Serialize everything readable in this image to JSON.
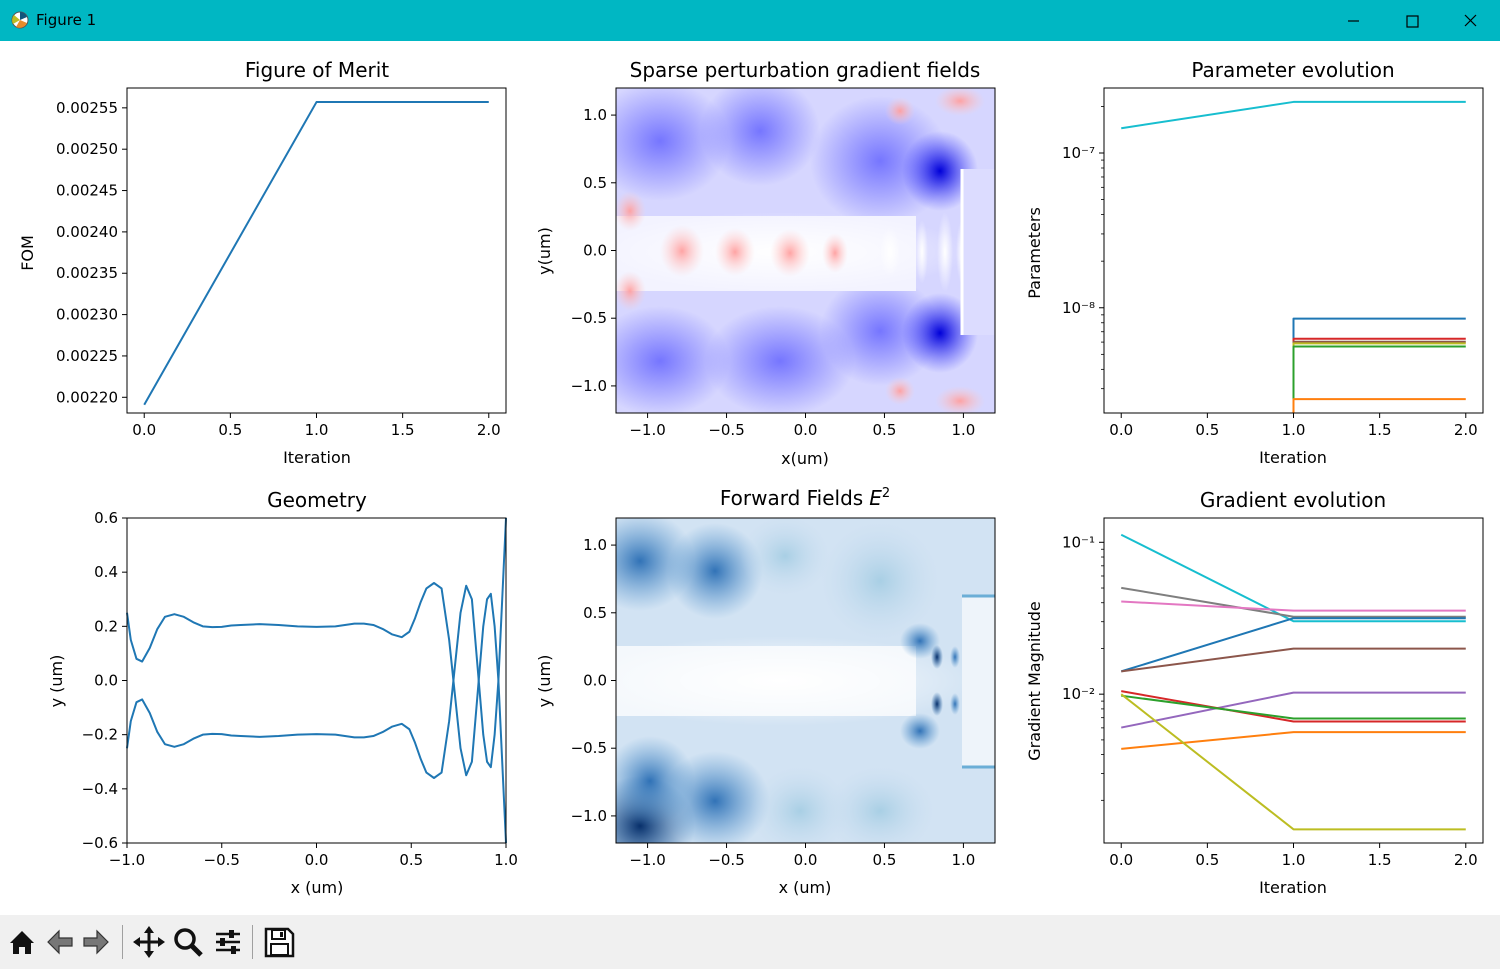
{
  "window": {
    "title": "Figure 1",
    "accent": "#00b7c3"
  },
  "toolbar": {
    "buttons": [
      "home-icon",
      "back-icon",
      "forward-icon",
      "pan-icon",
      "zoom-icon",
      "subplots-icon",
      "save-icon"
    ]
  },
  "colors": [
    "#1f77b4",
    "#ff7f0e",
    "#2ca02c",
    "#d62728",
    "#9467bd",
    "#8c564b",
    "#e377c2",
    "#7f7f7f",
    "#bcbd22",
    "#17becf"
  ],
  "chart_data": [
    {
      "type": "line",
      "title": "Figure of Merit",
      "xlabel": "Iteration",
      "ylabel": "FOM",
      "xlim": [
        -0.1,
        2.1
      ],
      "ylim": [
        0.002181,
        0.002574
      ],
      "xticks": [
        0.0,
        0.5,
        1.0,
        1.5,
        2.0
      ],
      "xtick_labels": [
        "0.0",
        "0.5",
        "1.0",
        "1.5",
        "2.0"
      ],
      "yticks": [
        0.0022,
        0.00225,
        0.0023,
        0.00235,
        0.0024,
        0.00245,
        0.0025,
        0.00255
      ],
      "ytick_labels": [
        "0.00220",
        "0.00225",
        "0.00230",
        "0.00235",
        "0.00240",
        "0.00245",
        "0.00250",
        "0.00255"
      ],
      "series": [
        {
          "x": [
            0,
            1,
            2
          ],
          "y": [
            0.002191,
            0.002557,
            0.002557
          ],
          "color": "#1f77b4"
        }
      ]
    },
    {
      "type": "heatmap",
      "title": "Sparse perturbation gradient fields",
      "xlabel": "x(um)",
      "ylabel": "y(um)",
      "colormap": "bwr",
      "xlim": [
        -1.2,
        1.2
      ],
      "ylim": [
        -1.2,
        1.2
      ],
      "xticks": [
        -1.0,
        -0.5,
        0.0,
        0.5,
        1.0
      ],
      "xtick_labels": [
        "−1.0",
        "−0.5",
        "0.0",
        "0.5",
        "1.0"
      ],
      "yticks": [
        -1.0,
        -0.5,
        0.0,
        0.5,
        1.0
      ],
      "ytick_labels": [
        "−1.0",
        "−0.5",
        "0.0",
        "0.5",
        "1.0"
      ]
    },
    {
      "type": "line",
      "title": "Parameter evolution",
      "xlabel": "Iteration",
      "ylabel": "Parameters",
      "yscale": "log",
      "xlim": [
        -0.1,
        2.1
      ],
      "ylim_log10": [
        -8.68,
        -6.58
      ],
      "xticks": [
        0.0,
        0.5,
        1.0,
        1.5,
        2.0
      ],
      "xtick_labels": [
        "0.0",
        "0.5",
        "1.0",
        "1.5",
        "2.0"
      ],
      "yticks_log10": [
        -8,
        -7
      ],
      "ytick_labels": [
        "10⁻⁸",
        "10⁻⁷"
      ],
      "series": [
        {
          "x": [
            0,
            1,
            2
          ],
          "log10_y": [
            -6.84,
            -6.67,
            -6.67
          ],
          "color": "#17becf"
        },
        {
          "x": [
            1,
            1,
            2
          ],
          "log10_y": [
            -8.68,
            -8.07,
            -8.07
          ],
          "color": "#1f77b4"
        },
        {
          "x": [
            1,
            1,
            2
          ],
          "log10_y": [
            -8.68,
            -8.2,
            -8.2
          ],
          "color": "#d62728"
        },
        {
          "x": [
            1,
            1,
            2
          ],
          "log10_y": [
            -8.68,
            -8.22,
            -8.22
          ],
          "color": "#8c564b"
        },
        {
          "x": [
            1,
            1,
            2
          ],
          "log10_y": [
            -8.68,
            -8.23,
            -8.23
          ],
          "color": "#bcbd22"
        },
        {
          "x": [
            1,
            1,
            2
          ],
          "log10_y": [
            -8.68,
            -8.25,
            -8.25
          ],
          "color": "#2ca02c"
        },
        {
          "x": [
            1,
            1,
            2
          ],
          "log10_y": [
            -8.68,
            -8.59,
            -8.59
          ],
          "color": "#ff7f0e"
        }
      ]
    },
    {
      "type": "line",
      "title": "Geometry",
      "xlabel": "x (um)",
      "ylabel": "y (um)",
      "xlim": [
        -1.0,
        1.0
      ],
      "ylim": [
        -0.6,
        0.6
      ],
      "xticks": [
        -1.0,
        -0.5,
        0.0,
        0.5,
        1.0
      ],
      "xtick_labels": [
        "−1.0",
        "−0.5",
        "0.0",
        "0.5",
        "1.0"
      ],
      "yticks": [
        -0.6,
        -0.4,
        -0.2,
        0.0,
        0.2,
        0.4,
        0.6
      ],
      "ytick_labels": [
        "−0.6",
        "−0.4",
        "−0.2",
        "0.0",
        "0.2",
        "0.4",
        "0.6"
      ],
      "series": [
        {
          "color": "#1f77b4",
          "x": [
            -1.0,
            -0.98,
            -0.95,
            -0.92,
            -0.88,
            -0.84,
            -0.8,
            -0.75,
            -0.7,
            -0.65,
            -0.6,
            -0.55,
            -0.5,
            -0.45,
            -0.4,
            -0.3,
            -0.2,
            -0.1,
            0.0,
            0.1,
            0.2,
            0.25,
            0.3,
            0.35,
            0.4,
            0.45,
            0.49,
            0.52,
            0.55,
            0.58,
            0.62,
            0.66,
            0.7,
            0.73,
            0.76,
            0.79,
            0.82,
            0.85,
            0.88,
            0.9,
            0.92,
            0.94,
            0.96,
            0.98,
            1.0
          ],
          "y": [
            0.25,
            0.15,
            0.08,
            0.07,
            0.12,
            0.19,
            0.235,
            0.245,
            0.235,
            0.215,
            0.2,
            0.197,
            0.198,
            0.203,
            0.205,
            0.208,
            0.205,
            0.2,
            0.198,
            0.2,
            0.21,
            0.21,
            0.205,
            0.19,
            0.17,
            0.16,
            0.18,
            0.23,
            0.29,
            0.34,
            0.36,
            0.34,
            0.15,
            -0.05,
            -0.25,
            -0.35,
            -0.3,
            -0.05,
            0.2,
            0.3,
            0.32,
            0.2,
            0.0,
            -0.3,
            -0.6
          ]
        },
        {
          "color": "#1f77b4",
          "x": [
            -1.0,
            -0.98,
            -0.95,
            -0.92,
            -0.88,
            -0.84,
            -0.8,
            -0.75,
            -0.7,
            -0.65,
            -0.6,
            -0.55,
            -0.5,
            -0.45,
            -0.4,
            -0.3,
            -0.2,
            -0.1,
            0.0,
            0.1,
            0.2,
            0.25,
            0.3,
            0.35,
            0.4,
            0.45,
            0.49,
            0.52,
            0.55,
            0.58,
            0.62,
            0.66,
            0.7,
            0.73,
            0.76,
            0.79,
            0.82,
            0.85,
            0.88,
            0.9,
            0.92,
            0.94,
            0.96,
            0.98,
            1.0
          ],
          "y": [
            -0.25,
            -0.15,
            -0.08,
            -0.07,
            -0.12,
            -0.19,
            -0.235,
            -0.245,
            -0.235,
            -0.215,
            -0.2,
            -0.197,
            -0.198,
            -0.203,
            -0.205,
            -0.208,
            -0.205,
            -0.2,
            -0.198,
            -0.2,
            -0.21,
            -0.21,
            -0.205,
            -0.19,
            -0.17,
            -0.16,
            -0.18,
            -0.23,
            -0.29,
            -0.34,
            -0.36,
            -0.34,
            -0.15,
            0.05,
            0.25,
            0.35,
            0.3,
            0.05,
            -0.2,
            -0.3,
            -0.32,
            -0.2,
            0.0,
            0.3,
            0.6
          ]
        }
      ]
    },
    {
      "type": "heatmap",
      "title": "Forward Fields",
      "title_math": "E",
      "title_sup": "2",
      "xlabel": "x (um)",
      "ylabel": "y (um)",
      "colormap": "Blues",
      "xlim": [
        -1.2,
        1.2
      ],
      "ylim": [
        -1.2,
        1.2
      ],
      "xticks": [
        -1.0,
        -0.5,
        0.0,
        0.5,
        1.0
      ],
      "xtick_labels": [
        "−1.0",
        "−0.5",
        "0.0",
        "0.5",
        "1.0"
      ],
      "yticks": [
        -1.0,
        -0.5,
        0.0,
        0.5,
        1.0
      ],
      "ytick_labels": [
        "−1.0",
        "−0.5",
        "0.0",
        "0.5",
        "1.0"
      ]
    },
    {
      "type": "line",
      "title": "Gradient evolution",
      "xlabel": "Iteration",
      "ylabel": "Gradient Magnitude",
      "yscale": "log",
      "xlim": [
        -0.1,
        2.1
      ],
      "ylim_log10": [
        -2.98,
        -0.84
      ],
      "xticks": [
        0.0,
        0.5,
        1.0,
        1.5,
        2.0
      ],
      "xtick_labels": [
        "0.0",
        "0.5",
        "1.0",
        "1.5",
        "2.0"
      ],
      "yticks_log10": [
        -2,
        -1
      ],
      "ytick_labels": [
        "10⁻²",
        "10⁻¹"
      ],
      "series": [
        {
          "x": [
            0,
            1,
            2
          ],
          "log10_y": [
            -0.95,
            -1.52,
            -1.52
          ],
          "color": "#17becf"
        },
        {
          "x": [
            0,
            1,
            2
          ],
          "log10_y": [
            -1.3,
            -1.49,
            -1.49
          ],
          "color": "#7f7f7f"
        },
        {
          "x": [
            0,
            1,
            2
          ],
          "log10_y": [
            -1.39,
            -1.45,
            -1.45
          ],
          "color": "#e377c2"
        },
        {
          "x": [
            0,
            1,
            2
          ],
          "log10_y": [
            -1.85,
            -1.5,
            -1.5
          ],
          "color": "#1f77b4"
        },
        {
          "x": [
            0,
            1,
            2
          ],
          "log10_y": [
            -1.85,
            -1.7,
            -1.7
          ],
          "color": "#8c564b"
        },
        {
          "x": [
            0,
            1,
            2
          ],
          "log10_y": [
            -2.22,
            -1.99,
            -1.99
          ],
          "color": "#9467bd"
        },
        {
          "x": [
            0,
            1,
            2
          ],
          "log10_y": [
            -1.98,
            -2.18,
            -2.18
          ],
          "color": "#d62728"
        },
        {
          "x": [
            0,
            1,
            2
          ],
          "log10_y": [
            -2.01,
            -2.16,
            -2.16
          ],
          "color": "#2ca02c"
        },
        {
          "x": [
            0,
            1,
            2
          ],
          "log10_y": [
            -2.36,
            -2.25,
            -2.25
          ],
          "color": "#ff7f0e"
        },
        {
          "x": [
            0,
            1,
            2
          ],
          "log10_y": [
            -2.0,
            -2.89,
            -2.89
          ],
          "color": "#bcbd22"
        }
      ]
    }
  ]
}
